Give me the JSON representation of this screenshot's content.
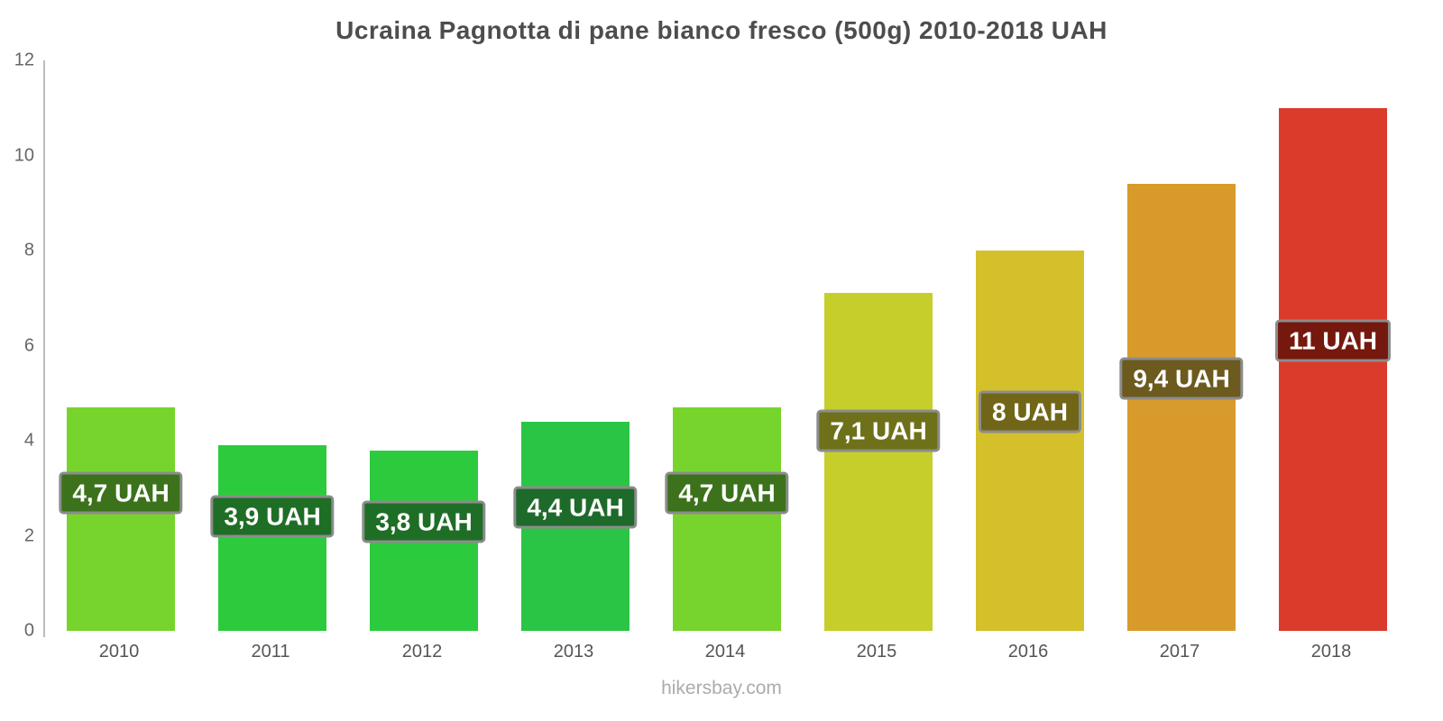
{
  "title": "Ucraina Pagnotta di pane bianco fresco (500g) 2010-2018 UAH",
  "footer": "hikersbay.com",
  "chart_data": {
    "type": "bar",
    "title": "Ucraina Pagnotta di pane bianco fresco (500g) 2010-2018 UAH",
    "categories": [
      "2010",
      "2011",
      "2012",
      "2013",
      "2014",
      "2015",
      "2016",
      "2017",
      "2018"
    ],
    "values": [
      4.7,
      3.9,
      3.8,
      4.4,
      4.7,
      7.1,
      8,
      9.4,
      11
    ],
    "data_labels": [
      "4,7 UAH",
      "3,9 UAH",
      "3,8 UAH",
      "4,4 UAH",
      "4,7 UAH",
      "7,1 UAH",
      "8 UAH",
      "9,4 UAH",
      "11 UAH"
    ],
    "bar_colors": [
      "#77d42c",
      "#2ccb3e",
      "#2ccb3e",
      "#2bc546",
      "#77d42c",
      "#c6ce2c",
      "#d4c02b",
      "#d89b2b",
      "#db3b2b"
    ],
    "label_bg_colors": [
      "#3c721c",
      "#1f6e26",
      "#1f6e26",
      "#1e6a2b",
      "#3c721c",
      "#6e7119",
      "#716618",
      "#6c5a1e",
      "#75180e"
    ],
    "label_border_color": "#8c8c8c",
    "label_center_y": [
      2.9,
      2.4,
      2.3,
      2.6,
      2.9,
      4.2,
      4.6,
      5.3,
      6.1
    ],
    "xlabel": "",
    "ylabel": "",
    "ylim": [
      0,
      12
    ],
    "yticks": [
      0,
      2,
      4,
      6,
      8,
      10,
      12
    ],
    "grid": false,
    "legend": false,
    "background": "#ffffff",
    "currency": "UAH"
  }
}
